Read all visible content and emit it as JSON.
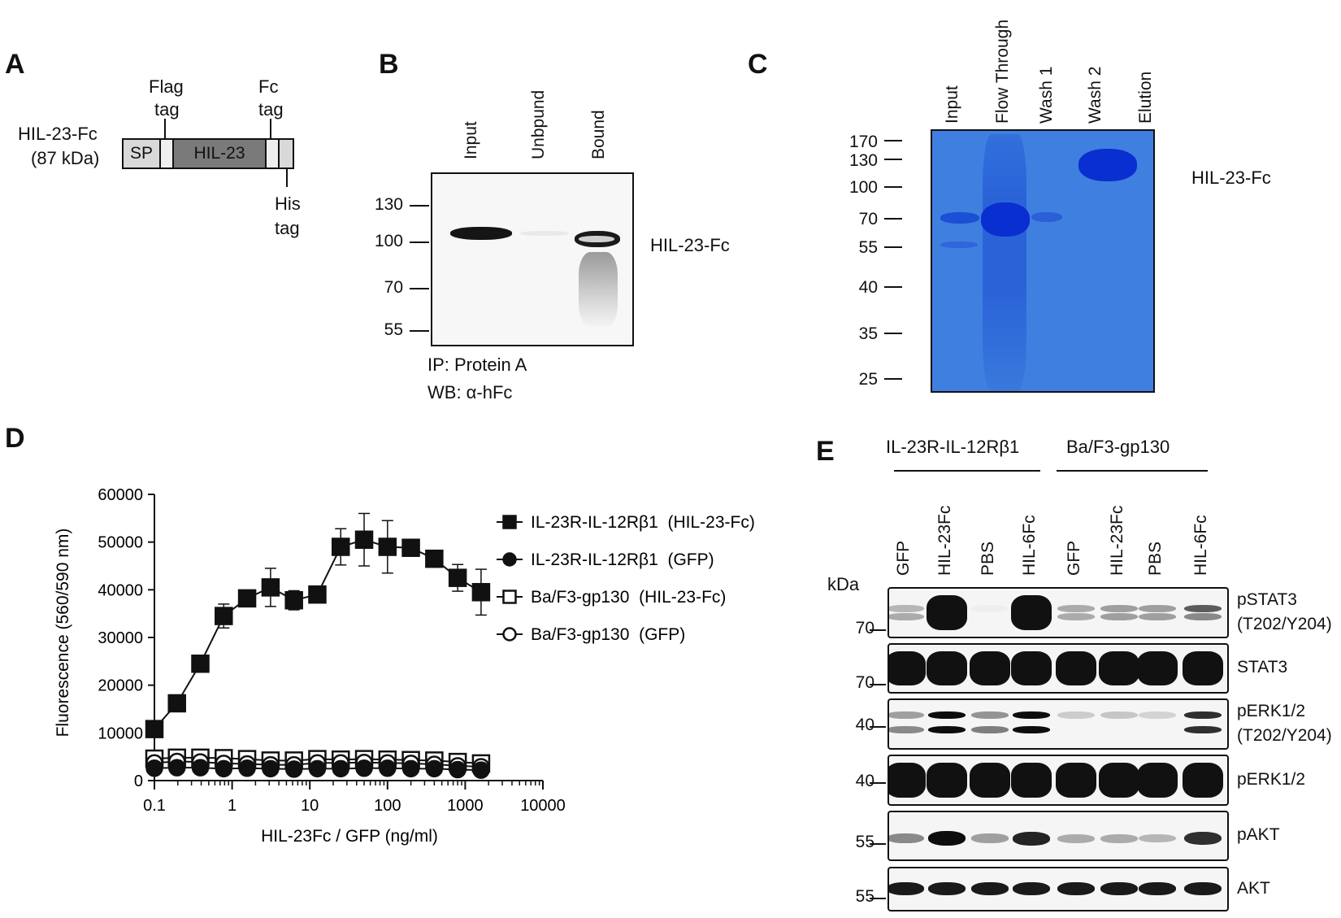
{
  "panel_a": {
    "label": "A",
    "construct_name": "HIL-23-Fc",
    "construct_size": "(87 kDa)",
    "segment_sp": "SP",
    "segment_hil23": "HIL-23",
    "flag_tag": [
      "Flag",
      "tag"
    ],
    "fc_tag": [
      "Fc",
      "tag"
    ],
    "his_tag": [
      "His",
      "tag"
    ]
  },
  "panel_b": {
    "label": "B",
    "lanes": [
      "Input",
      "Unbpund",
      "Bound"
    ],
    "markers": [
      "130",
      "100",
      "70",
      "55"
    ],
    "band_label": "HIL-23-Fc",
    "caption_ip": "IP: Protein A",
    "caption_wb": "WB: α-hFc"
  },
  "panel_c": {
    "label": "C",
    "lanes": [
      "Input",
      "Flow Through",
      "Wash 1",
      "Wash 2",
      "Elution"
    ],
    "markers": [
      "170",
      "130",
      "100",
      "70",
      "55",
      "40",
      "35",
      "25"
    ],
    "band_label": "HIL-23-Fc",
    "gel_color": "#3f7fe0",
    "band_color": "#0a2fd0"
  },
  "panel_d": {
    "label": "D",
    "legend": [
      "IL-23R-IL-12Rβ1  (HIL-23-Fc)",
      "IL-23R-IL-12Rβ1  (GFP)",
      "Ba/F3-gp130  (HIL-23-Fc)",
      "Ba/F3-gp130  (GFP)"
    ]
  },
  "chart_data": {
    "type": "line",
    "xlabel": "HIL-23Fc / GFP (ng/ml)",
    "ylabel": "Fluorescence (560/590 nm)",
    "x_scale": "log",
    "xlim": [
      0.1,
      10000
    ],
    "ylim": [
      0,
      60000
    ],
    "x_ticks": [
      "0.1",
      "1",
      "10",
      "100",
      "1000",
      "10000"
    ],
    "y_ticks": [
      "0",
      "10000",
      "20000",
      "30000",
      "40000",
      "50000",
      "60000"
    ],
    "x": [
      0.1,
      0.195,
      0.39,
      0.78,
      1.56,
      3.125,
      6.25,
      12.5,
      25,
      50,
      100,
      200,
      400,
      800,
      1600
    ],
    "series": [
      {
        "name": "IL-23R-IL-12Rβ1  (HIL-23-Fc)",
        "marker": "filled-square",
        "values": [
          10800,
          16200,
          24500,
          34500,
          38200,
          40500,
          37800,
          39000,
          49000,
          50500,
          49000,
          48800,
          46500,
          42500,
          39500
        ],
        "errors": [
          0,
          0,
          0,
          2500,
          0,
          4000,
          2000,
          0,
          3800,
          5500,
          5500,
          0,
          0,
          2800,
          4800
        ]
      },
      {
        "name": "IL-23R-IL-12Rβ1  (GFP)",
        "marker": "filled-circle",
        "values": [
          2600,
          2700,
          2700,
          2500,
          2600,
          2500,
          2400,
          2500,
          2500,
          2600,
          2600,
          2500,
          2500,
          2300,
          2200
        ],
        "errors": []
      },
      {
        "name": "Ba/F3-gp130  (HIL-23-Fc)",
        "marker": "open-square",
        "values": [
          4600,
          4800,
          4800,
          4700,
          4500,
          4200,
          4200,
          4500,
          4400,
          4500,
          4400,
          4300,
          4200,
          3900,
          3600
        ],
        "errors": []
      },
      {
        "name": "Ba/F3-gp130  (GFP)",
        "marker": "open-circle",
        "values": [
          3700,
          4000,
          3900,
          3600,
          3500,
          3300,
          3300,
          3700,
          3700,
          3800,
          3700,
          3600,
          3400,
          3100,
          2900
        ],
        "errors": []
      }
    ]
  },
  "panel_e": {
    "label": "E",
    "group1": "IL-23R-IL-12Rβ1",
    "group2": "Ba/F3-gp130",
    "lanes": [
      "GFP",
      "HIL-23Fc",
      "PBS",
      "HIL-6Fc",
      "GFP",
      "HIL-23Fc",
      "PBS",
      "HIL-6Fc"
    ],
    "kda": "kDa",
    "blots": [
      {
        "mw": "70",
        "label": [
          "pSTAT3",
          "(T202/Y204)"
        ]
      },
      {
        "mw": "70",
        "label": [
          "STAT3"
        ]
      },
      {
        "mw": "40",
        "label": [
          "pERK1/2",
          "(T202/Y204)"
        ]
      },
      {
        "mw": "40",
        "label": [
          "pERK1/2"
        ]
      },
      {
        "mw": "55",
        "label": [
          "pAKT"
        ]
      },
      {
        "mw": "55",
        "label": [
          "AKT"
        ]
      }
    ]
  }
}
